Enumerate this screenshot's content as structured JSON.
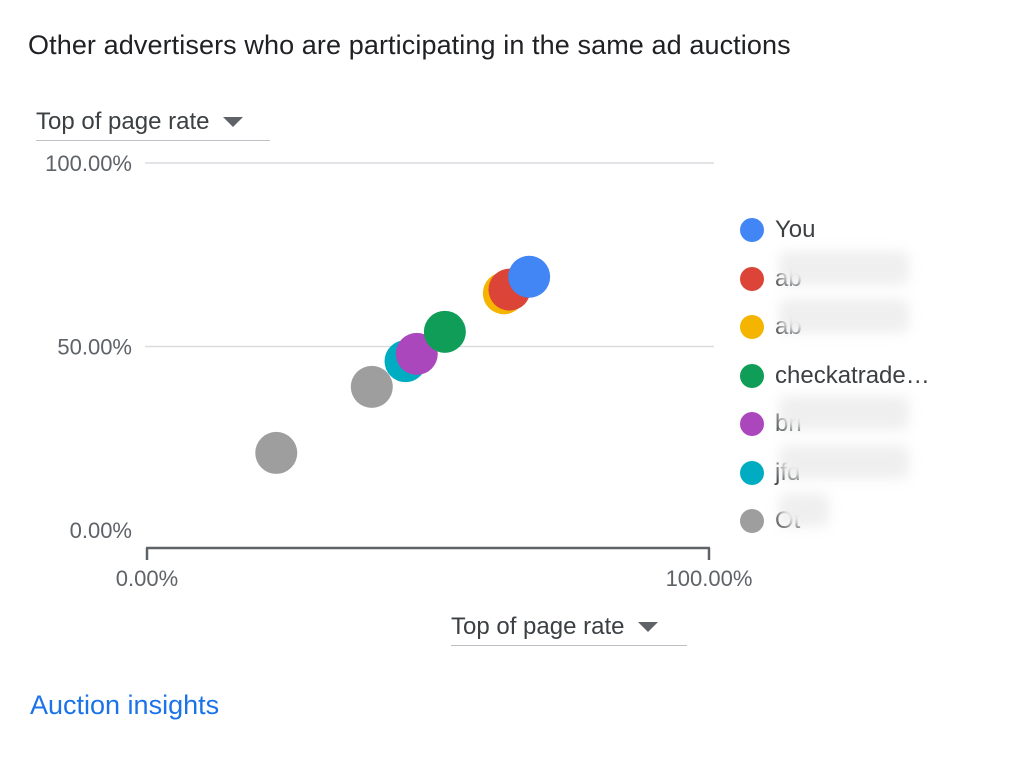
{
  "title": "Other advertisers who are participating in the same ad auctions",
  "y_axis_selector": {
    "label": "Top of page rate",
    "icon": "arrow-drop-down-icon"
  },
  "x_axis_selector": {
    "label": "Top of page rate",
    "icon": "arrow-drop-down-icon"
  },
  "link": {
    "label": "Auction insights",
    "color": "#1a73e8"
  },
  "legend": [
    {
      "label": "You",
      "color": "#4285f4"
    },
    {
      "label": "ab",
      "color": "#db4437"
    },
    {
      "label": "ab",
      "color": "#f4b400"
    },
    {
      "label": "checkatrade…",
      "color": "#0f9d58"
    },
    {
      "label": "bri",
      "color": "#ab47bc"
    },
    {
      "label": "jfd",
      "color": "#00acc1"
    },
    {
      "label": "Ot",
      "color": "#9e9e9e"
    }
  ],
  "chart_data": {
    "type": "scatter",
    "title": "Other advertisers who are participating in the same ad auctions",
    "xlabel": "Top of page rate",
    "ylabel": "Top of page rate",
    "xlim": [
      0,
      100
    ],
    "ylim": [
      0,
      100
    ],
    "x_tick_labels": [
      "0.00%",
      "100.00%"
    ],
    "y_tick_labels": [
      "0.00%",
      "50.00%",
      "100.00%"
    ],
    "y_gridlines": [
      50,
      100
    ],
    "series": [
      {
        "name": "Other",
        "color": "#9e9e9e",
        "x": 23,
        "y": 21
      },
      {
        "name": "Other",
        "color": "#9e9e9e",
        "x": 40,
        "y": 39
      },
      {
        "name": "jfd",
        "color": "#00acc1",
        "x": 46,
        "y": 46
      },
      {
        "name": "bri",
        "color": "#ab47bc",
        "x": 48,
        "y": 48
      },
      {
        "name": "checkatrade",
        "color": "#0f9d58",
        "x": 53,
        "y": 54
      },
      {
        "name": "ab (yellow)",
        "color": "#f4b400",
        "x": 63.5,
        "y": 64.5
      },
      {
        "name": "ab (red)",
        "color": "#db4437",
        "x": 64.5,
        "y": 65.5
      },
      {
        "name": "You",
        "color": "#4285f4",
        "x": 68,
        "y": 69
      }
    ]
  }
}
